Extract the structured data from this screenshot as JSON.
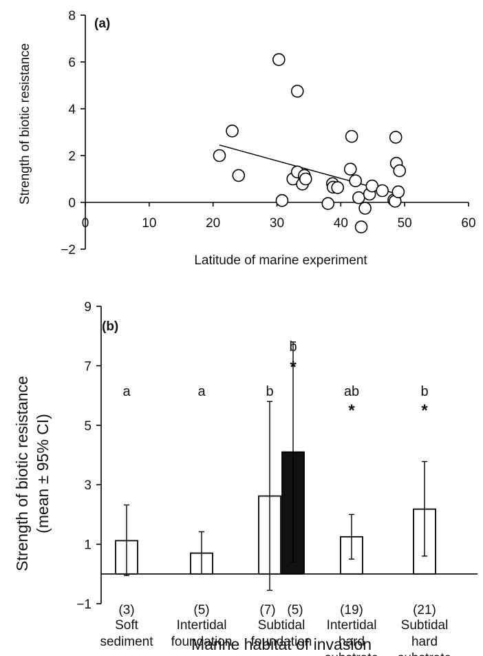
{
  "chart_data": [
    {
      "type": "scatter",
      "panel_label": "(a)",
      "xlabel": "Latitude of marine experiment",
      "ylabel": "Strength of biotic resistance",
      "xlim": [
        0,
        60
      ],
      "ylim": [
        -2,
        8
      ],
      "x_ticks": [
        "0",
        "10",
        "20",
        "30",
        "40",
        "50",
        "60"
      ],
      "y_ticks": [
        "−2",
        "0",
        "2",
        "4",
        "6",
        "8"
      ],
      "points": [
        {
          "x": 21,
          "y": 2.0
        },
        {
          "x": 23,
          "y": 3.05
        },
        {
          "x": 24,
          "y": 1.15
        },
        {
          "x": 30.3,
          "y": 6.1
        },
        {
          "x": 30.8,
          "y": 0.08
        },
        {
          "x": 32.5,
          "y": 1.0
        },
        {
          "x": 33.2,
          "y": 1.3
        },
        {
          "x": 33.2,
          "y": 4.75
        },
        {
          "x": 34,
          "y": 0.78
        },
        {
          "x": 34.3,
          "y": 1.15
        },
        {
          "x": 34.5,
          "y": 1.0
        },
        {
          "x": 38,
          "y": -0.05
        },
        {
          "x": 38.7,
          "y": 0.8
        },
        {
          "x": 38.8,
          "y": 0.65
        },
        {
          "x": 39.5,
          "y": 0.63
        },
        {
          "x": 41.5,
          "y": 1.42
        },
        {
          "x": 41.7,
          "y": 2.82
        },
        {
          "x": 42.3,
          "y": 0.92
        },
        {
          "x": 42.8,
          "y": 0.2
        },
        {
          "x": 43.2,
          "y": -1.05
        },
        {
          "x": 43.8,
          "y": -0.25
        },
        {
          "x": 44.5,
          "y": 0.35
        },
        {
          "x": 44.9,
          "y": 0.7
        },
        {
          "x": 46.5,
          "y": 0.5
        },
        {
          "x": 48.3,
          "y": 0.1
        },
        {
          "x": 48.5,
          "y": 0.05
        },
        {
          "x": 48.6,
          "y": 2.78
        },
        {
          "x": 48.7,
          "y": 1.67
        },
        {
          "x": 49.0,
          "y": 0.45
        },
        {
          "x": 49.2,
          "y": 1.35
        }
      ],
      "trendline": {
        "x": [
          21,
          49
        ],
        "y": [
          2.45,
          0.35
        ]
      }
    },
    {
      "type": "bar",
      "panel_label": "(b)",
      "xlabel": "Marine habitat of invasion",
      "ylabel_line1": "Strength of biotic resistance",
      "ylabel_line2": "(mean ± 95% CI)",
      "ylim": [
        -1,
        9
      ],
      "y_ticks": [
        "−1",
        "1",
        "3",
        "5",
        "7",
        "9"
      ],
      "groups": [
        {
          "label_lines": [
            "Soft",
            "sediment"
          ],
          "bars": [
            {
              "mean": 1.12,
              "ci_low": -0.05,
              "ci_high": 2.32,
              "filled": false,
              "n": "(3)",
              "letter": "a",
              "star": false
            }
          ]
        },
        {
          "label_lines": [
            "Intertidal",
            "foundation"
          ],
          "bars": [
            {
              "mean": 0.7,
              "ci_low": 0.0,
              "ci_high": 1.42,
              "filled": false,
              "n": "(5)",
              "letter": "a",
              "star": false
            }
          ]
        },
        {
          "label_lines": [
            "Subtidal",
            "foundation"
          ],
          "bars": [
            {
              "mean": 2.62,
              "ci_low": -0.55,
              "ci_high": 5.8,
              "filled": false,
              "n": "(7)",
              "letter": "b",
              "star": false
            },
            {
              "mean": 4.1,
              "ci_low": 0.4,
              "ci_high": 7.8,
              "filled": true,
              "n": "(5)",
              "letter": "b",
              "star": true
            }
          ]
        },
        {
          "label_lines": [
            "Intertidal",
            "hard",
            "substrate"
          ],
          "bars": [
            {
              "mean": 1.25,
              "ci_low": 0.5,
              "ci_high": 2.0,
              "filled": false,
              "n": "(19)",
              "letter": "ab",
              "star": true
            }
          ]
        },
        {
          "label_lines": [
            "Subtidal",
            "hard",
            "substrate"
          ],
          "bars": [
            {
              "mean": 2.18,
              "ci_low": 0.6,
              "ci_high": 3.78,
              "filled": false,
              "n": "(21)",
              "letter": "b",
              "star": true
            }
          ]
        }
      ],
      "star_symbol": "*"
    }
  ]
}
